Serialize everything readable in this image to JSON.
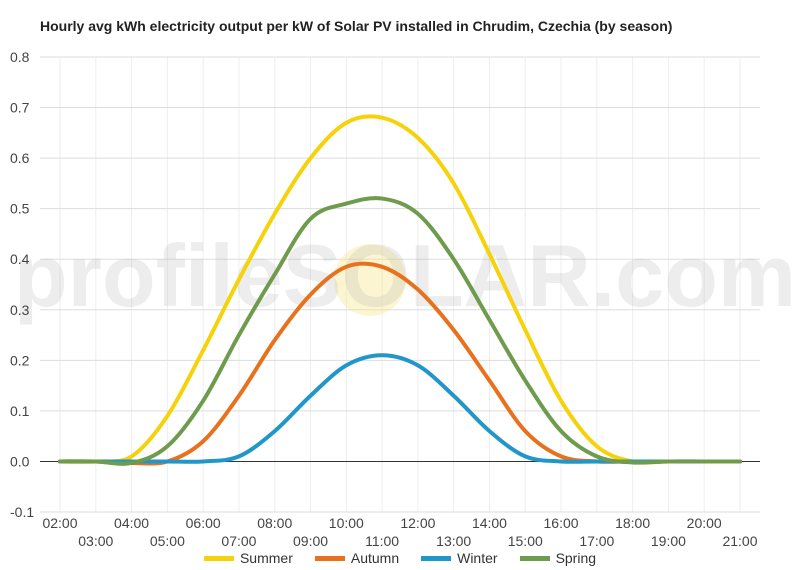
{
  "chart_data": {
    "type": "line",
    "title": "Hourly avg kWh electricity output per kW of Solar PV installed in Chrudim, Czechia (by season)",
    "watermark": "profileSOLAR.com",
    "xlabel": "",
    "ylabel": "",
    "ylim": [
      -0.1,
      0.8
    ],
    "yticks": [
      "-0.1",
      "0.0",
      "0.1",
      "0.2",
      "0.3",
      "0.4",
      "0.5",
      "0.6",
      "0.7",
      "0.8"
    ],
    "x": [
      "02:00",
      "03:00",
      "04:00",
      "05:00",
      "06:00",
      "07:00",
      "08:00",
      "09:00",
      "10:00",
      "11:00",
      "12:00",
      "13:00",
      "14:00",
      "15:00",
      "16:00",
      "17:00",
      "18:00",
      "19:00",
      "20:00",
      "21:00"
    ],
    "grid": true,
    "legend_position": "bottom",
    "series": [
      {
        "name": "Summer",
        "color": "#f5d20a",
        "values": [
          0.0,
          0.0,
          0.01,
          0.09,
          0.22,
          0.36,
          0.49,
          0.6,
          0.67,
          0.68,
          0.64,
          0.55,
          0.41,
          0.26,
          0.12,
          0.03,
          0.0,
          0.0,
          0.0,
          0.0
        ]
      },
      {
        "name": "Autumn",
        "color": "#e8711e",
        "values": [
          0.0,
          0.0,
          -0.003,
          0.0,
          0.04,
          0.13,
          0.24,
          0.33,
          0.385,
          0.385,
          0.34,
          0.26,
          0.16,
          0.06,
          0.01,
          0.0,
          0.0,
          0.0,
          0.0,
          0.0
        ]
      },
      {
        "name": "Winter",
        "color": "#2196c9",
        "values": [
          0.0,
          0.0,
          0.0,
          0.0,
          0.0,
          0.01,
          0.06,
          0.13,
          0.19,
          0.21,
          0.19,
          0.13,
          0.06,
          0.01,
          0.0,
          0.0,
          0.0,
          0.0,
          0.0,
          0.0
        ]
      },
      {
        "name": "Spring",
        "color": "#6e9b4c",
        "values": [
          0.0,
          0.0,
          -0.003,
          0.03,
          0.12,
          0.25,
          0.37,
          0.48,
          0.51,
          0.52,
          0.49,
          0.4,
          0.28,
          0.16,
          0.06,
          0.01,
          -0.002,
          0.0,
          0.0,
          0.0
        ]
      }
    ]
  }
}
